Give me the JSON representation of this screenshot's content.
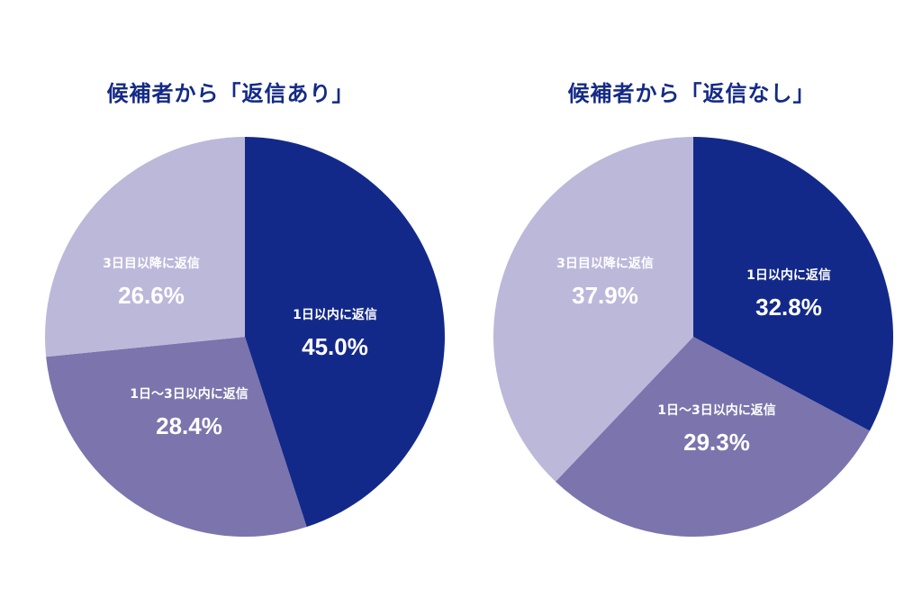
{
  "chart_data": [
    {
      "type": "pie",
      "title": "候補者から「返信あり」",
      "slices": [
        {
          "label": "1日以内に返信",
          "value": 45.0,
          "value_label": "45.0%",
          "color": "#13298a"
        },
        {
          "label": "1日～3日以内に返信",
          "value": 28.4,
          "value_label": "28.4%",
          "color": "#7b74ad"
        },
        {
          "label": "3日目以降に返信",
          "value": 26.6,
          "value_label": "26.6%",
          "color": "#bcb8da"
        }
      ]
    },
    {
      "type": "pie",
      "title": "候補者から「返信なし」",
      "slices": [
        {
          "label": "1日以内に返信",
          "value": 32.8,
          "value_label": "32.8%",
          "color": "#13298a"
        },
        {
          "label": "1日～3日以内に返信",
          "value": 29.3,
          "value_label": "29.3%",
          "color": "#7b74ad"
        },
        {
          "label": "3日目以降に返信",
          "value": 37.9,
          "value_label": "37.9%",
          "color": "#bcb8da"
        }
      ]
    }
  ]
}
